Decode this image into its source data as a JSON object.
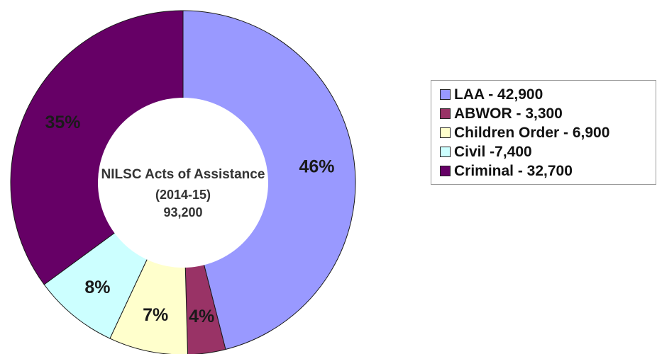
{
  "chart_data": {
    "type": "pie",
    "donut": true,
    "center_text": [
      "NILSC Acts of Assistance",
      "(2014-15)",
      "93,200"
    ],
    "slices": [
      {
        "name": "LAA",
        "value": 42900,
        "percent_label": "46%",
        "legend_label": "LAA - 42,900",
        "color": "#9999ff"
      },
      {
        "name": "ABWOR",
        "value": 3300,
        "percent_label": "4%",
        "legend_label": "ABWOR - 3,300",
        "color": "#993366"
      },
      {
        "name": "Children Order",
        "value": 6900,
        "percent_label": "7%",
        "legend_label": "Children Order - 6,900",
        "color": "#ffffcc"
      },
      {
        "name": "Civil",
        "value": 7400,
        "percent_label": "8%",
        "legend_label": "Civil -7,400",
        "color": "#ccffff"
      },
      {
        "name": "Criminal",
        "value": 32700,
        "percent_label": "35%",
        "legend_label": "Criminal - 32,700",
        "color": "#660066"
      }
    ],
    "legend_position": "right"
  }
}
